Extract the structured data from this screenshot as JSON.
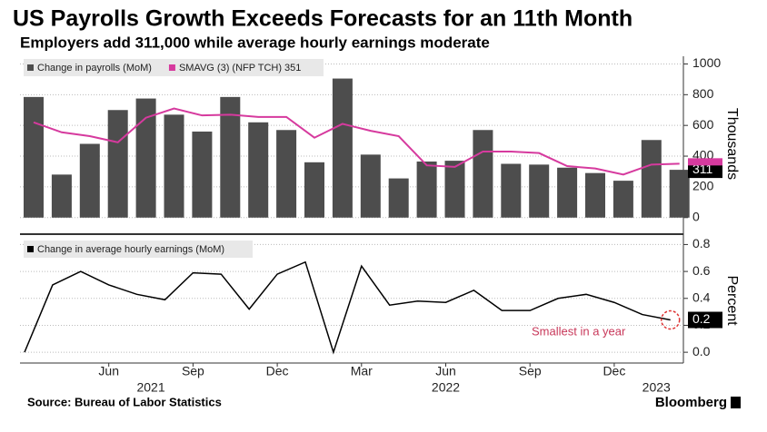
{
  "title": "US Payrolls Growth Exceeds Forecasts for an 11th Month",
  "subtitle": "Employers add 311,000 while average hourly earnings moderate",
  "source": "Source: Bureau of Labor Statistics",
  "brand": "Bloomberg",
  "chart_data": [
    {
      "type": "bar",
      "ylabel": "Thousands",
      "ylim": [
        -90,
        1050
      ],
      "yticks": [
        0,
        200,
        400,
        600,
        800,
        1000
      ],
      "grid": true,
      "series": [
        {
          "name": "Change in payrolls (MoM)",
          "color": "#4d4d4d",
          "end_label": "311",
          "values": [
            785,
            280,
            480,
            700,
            775,
            670,
            560,
            785,
            620,
            570,
            360,
            905,
            410,
            255,
            365,
            370,
            570,
            350,
            345,
            325,
            290,
            240,
            505,
            311
          ]
        },
        {
          "name": "SMAVG (3) (NFP TCH) 351",
          "color": "#d63a9e",
          "type": "line",
          "values": [
            620,
            555,
            530,
            490,
            650,
            710,
            665,
            670,
            655,
            655,
            520,
            610,
            565,
            530,
            340,
            330,
            430,
            430,
            420,
            335,
            320,
            280,
            345,
            351
          ]
        }
      ]
    },
    {
      "type": "line",
      "ylabel": "Percent",
      "categories": [
        null,
        null,
        null,
        "Jun",
        null,
        null,
        "Sep",
        null,
        null,
        "Dec",
        null,
        null,
        "Mar",
        null,
        null,
        "Jun",
        null,
        null,
        "Sep",
        null,
        null,
        "Dec",
        null,
        null
      ],
      "years": [
        "2021",
        "2022",
        "2023"
      ],
      "ylim": [
        -0.08,
        0.85
      ],
      "yticks": [
        {
          "value": 0,
          "label": "0.0"
        },
        {
          "value": 0.2,
          "label": "0.2"
        },
        {
          "value": 0.4,
          "label": "0.4"
        },
        {
          "value": 0.6,
          "label": "0.6"
        },
        {
          "value": 0.8,
          "label": "0.8"
        }
      ],
      "grid": true,
      "annotation": "Smallest in a year",
      "series": [
        {
          "name": "Change in average hourly earnings (MoM)",
          "color": "#000000",
          "end_label": "0.2",
          "values": [
            0,
            0.5,
            0.6,
            0.5,
            0.43,
            0.39,
            0.59,
            0.58,
            0.32,
            0.58,
            0.67,
            0,
            0.64,
            0.35,
            0.38,
            0.37,
            0.46,
            0.31,
            0.31,
            0.4,
            0.43,
            0.37,
            0.28,
            0.24
          ]
        }
      ]
    }
  ]
}
